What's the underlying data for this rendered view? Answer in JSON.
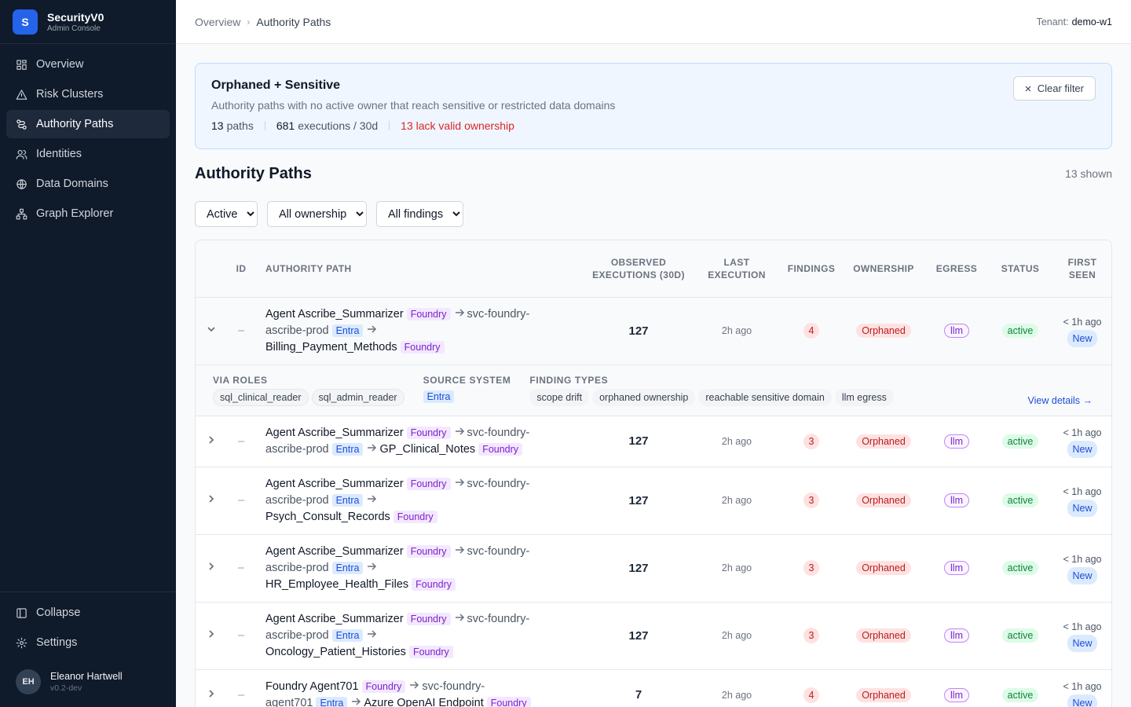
{
  "sidebar": {
    "brand": {
      "logo": "S",
      "name": "SecurityV0",
      "subtitle": "Admin Console"
    },
    "nav": [
      "Overview",
      "Risk Clusters",
      "Authority Paths",
      "Identities",
      "Data Domains",
      "Graph Explorer"
    ],
    "active": "Authority Paths",
    "footer": [
      "Collapse",
      "Settings"
    ],
    "user": {
      "initials": "EH",
      "name": "Eleanor Hartwell",
      "version": "v0.2-dev"
    }
  },
  "header": {
    "breadcrumb": [
      "Overview",
      "Authority Paths"
    ],
    "tenant_label": "Tenant:",
    "tenant": "demo-w1"
  },
  "filter_banner": {
    "title": "Orphaned + Sensitive",
    "description": "Authority paths with no active owner that reach sensitive or restricted data domains",
    "paths_count": 13,
    "paths_label": "paths",
    "executions_count": 681,
    "executions_label": "executions / 30d",
    "alert": "13 lack valid ownership",
    "clear": "Clear filter"
  },
  "section": {
    "title": "Authority Paths",
    "shown": "13 shown"
  },
  "filters": [
    "Active",
    "All ownership",
    "All findings"
  ],
  "table": {
    "columns": [
      "ID",
      "AUTHORITY PATH",
      "OBSERVED EXECUTIONS (30D)",
      "LAST EXECUTION",
      "FINDINGS",
      "OWNERSHIP",
      "EGRESS",
      "STATUS",
      "FIRST SEEN"
    ],
    "rows": [
      {
        "id": "–",
        "expanded": true,
        "path": [
          {
            "name": "Agent Ascribe_Summarizer",
            "system": "Foundry"
          },
          {
            "name": "svc-foundry-ascribe-prod",
            "system": "Entra"
          },
          {
            "name": "Billing_Payment_Methods",
            "system": "Foundry"
          }
        ],
        "executions": 127,
        "last_execution": "2h ago",
        "findings": 4,
        "ownership": "Orphaned",
        "egress": "llm",
        "status": "active",
        "first_seen": "< 1h ago",
        "badge": "New",
        "details": {
          "via_roles_label": "VIA ROLES",
          "via_roles": [
            "sql_clinical_reader",
            "sql_admin_reader"
          ],
          "source_system_label": "SOURCE SYSTEM",
          "source_system": "Entra",
          "finding_types_label": "FINDING TYPES",
          "finding_types": [
            "scope drift",
            "orphaned ownership",
            "reachable sensitive domain",
            "llm egress"
          ],
          "link": "View details →"
        }
      },
      {
        "id": "–",
        "path": [
          {
            "name": "Agent Ascribe_Summarizer",
            "system": "Foundry"
          },
          {
            "name": "svc-foundry-ascribe-prod",
            "system": "Entra"
          },
          {
            "name": "GP_Clinical_Notes",
            "system": "Foundry"
          }
        ],
        "executions": 127,
        "last_execution": "2h ago",
        "findings": 3,
        "ownership": "Orphaned",
        "egress": "llm",
        "status": "active",
        "first_seen": "< 1h ago",
        "badge": "New"
      },
      {
        "id": "–",
        "path": [
          {
            "name": "Agent Ascribe_Summarizer",
            "system": "Foundry"
          },
          {
            "name": "svc-foundry-ascribe-prod",
            "system": "Entra"
          },
          {
            "name": "Psych_Consult_Records",
            "system": "Foundry"
          }
        ],
        "executions": 127,
        "last_execution": "2h ago",
        "findings": 3,
        "ownership": "Orphaned",
        "egress": "llm",
        "status": "active",
        "first_seen": "< 1h ago",
        "badge": "New"
      },
      {
        "id": "–",
        "path": [
          {
            "name": "Agent Ascribe_Summarizer",
            "system": "Foundry"
          },
          {
            "name": "svc-foundry-ascribe-prod",
            "system": "Entra"
          },
          {
            "name": "HR_Employee_Health_Files",
            "system": "Foundry"
          }
        ],
        "executions": 127,
        "last_execution": "2h ago",
        "findings": 3,
        "ownership": "Orphaned",
        "egress": "llm",
        "status": "active",
        "first_seen": "< 1h ago",
        "badge": "New"
      },
      {
        "id": "–",
        "path": [
          {
            "name": "Agent Ascribe_Summarizer",
            "system": "Foundry"
          },
          {
            "name": "svc-foundry-ascribe-prod",
            "system": "Entra"
          },
          {
            "name": "Oncology_Patient_Histories",
            "system": "Foundry"
          }
        ],
        "executions": 127,
        "last_execution": "2h ago",
        "findings": 3,
        "ownership": "Orphaned",
        "egress": "llm",
        "status": "active",
        "first_seen": "< 1h ago",
        "badge": "New"
      },
      {
        "id": "–",
        "path": [
          {
            "name": "Foundry Agent701",
            "system": "Foundry"
          },
          {
            "name": "svc-foundry-agent701",
            "system": "Entra"
          },
          {
            "name": "Azure OpenAI Endpoint",
            "system": "Foundry"
          }
        ],
        "executions": 7,
        "last_execution": "2h ago",
        "findings": 4,
        "ownership": "Orphaned",
        "egress": "llm",
        "status": "active",
        "first_seen": "< 1h ago",
        "badge": "New"
      }
    ]
  }
}
